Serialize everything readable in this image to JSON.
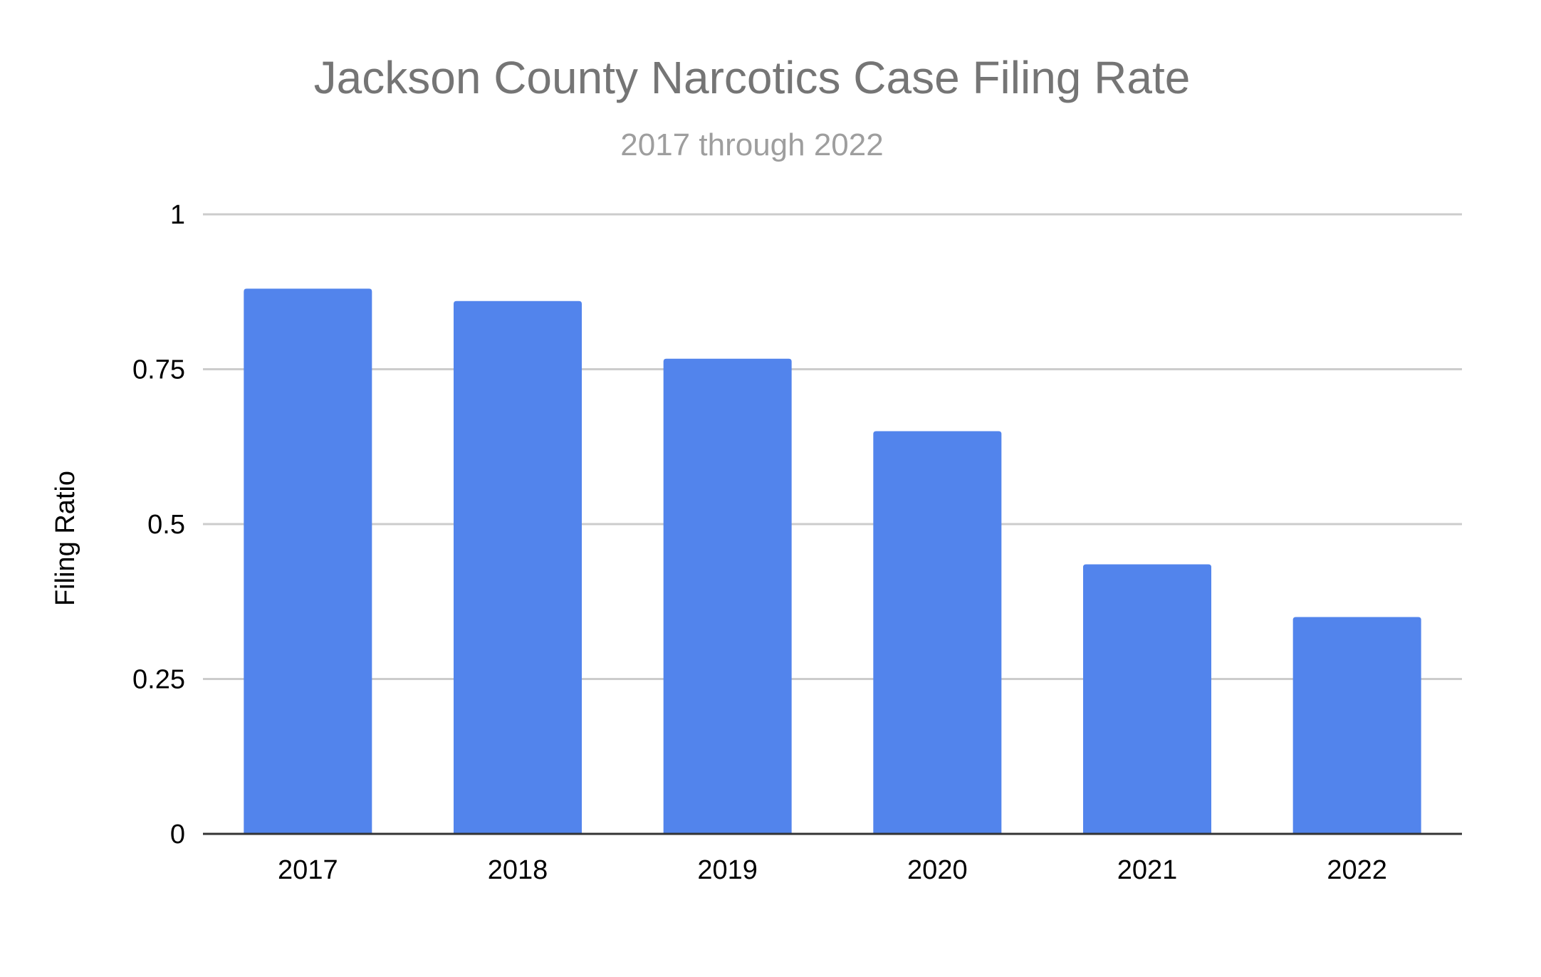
{
  "chart_data": {
    "type": "bar",
    "title": "Jackson County Narcotics Case Filing Rate",
    "subtitle": "2017 through 2022",
    "xlabel": "",
    "ylabel": "Filing Ratio",
    "categories": [
      "2017",
      "2018",
      "2019",
      "2020",
      "2021",
      "2022"
    ],
    "series": [
      {
        "values": [
          0.88,
          0.86,
          0.767,
          0.65,
          0.435,
          0.35
        ]
      }
    ],
    "ylim": [
      0,
      1
    ],
    "yticks": [
      "0",
      "0.25",
      "0.5",
      "0.75",
      "1"
    ],
    "grid": true,
    "legend": "none",
    "colors": {
      "bar": "#5284ec",
      "grid": "#cccccc",
      "axis": "#333333",
      "title": "#757575",
      "subtitle": "#9e9e9e"
    }
  }
}
